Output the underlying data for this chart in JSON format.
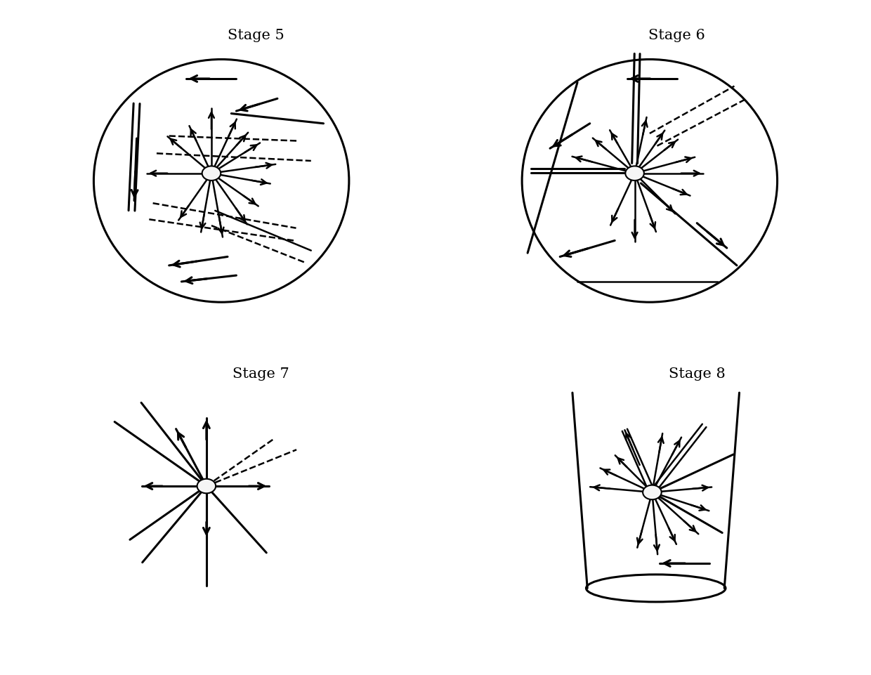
{
  "stages": [
    "Stage 5",
    "Stage 6",
    "Stage 7",
    "Stage 8"
  ],
  "bg_color": "#ffffff",
  "font_size_stage": 15,
  "lw_main": 1.8,
  "lw_thick": 2.2,
  "arrow_scale": 14
}
